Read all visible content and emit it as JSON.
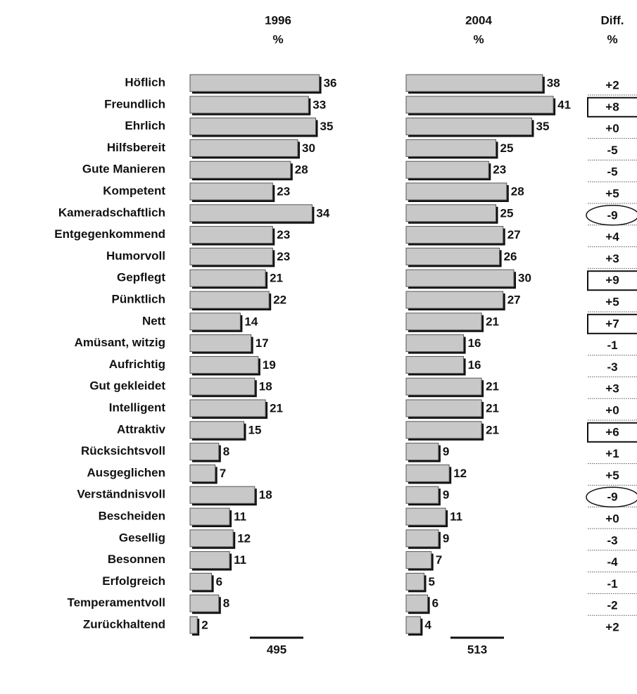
{
  "chart_data": {
    "type": "bar",
    "orientation": "horizontal",
    "categories": [
      "Höflich",
      "Freundlich",
      "Ehrlich",
      "Hilfsbereit",
      "Gute Manieren",
      "Kompetent",
      "Kameradschaftlich",
      "Entgegenkommend",
      "Humorvoll",
      "Gepflegt",
      "Pünktlich",
      "Nett",
      "Amüsant, witzig",
      "Aufrichtig",
      "Gut gekleidet",
      "Intelligent",
      "Attraktiv",
      "Rücksichtsvoll",
      "Ausgeglichen",
      "Verständnisvoll",
      "Bescheiden",
      "Gesellig",
      "Besonnen",
      "Erfolgreich",
      "Temperamentvoll",
      "Zurückhaltend"
    ],
    "series": [
      {
        "name": "1996",
        "unit": "%",
        "color": "#c8c8c8",
        "total": 495,
        "values": [
          36,
          33,
          35,
          30,
          28,
          23,
          34,
          23,
          23,
          21,
          22,
          14,
          17,
          19,
          18,
          21,
          15,
          8,
          7,
          18,
          11,
          12,
          11,
          6,
          8,
          2
        ]
      },
      {
        "name": "2004",
        "unit": "%",
        "color": "#c8c8c8",
        "total": 513,
        "values": [
          38,
          41,
          35,
          25,
          23,
          28,
          25,
          27,
          26,
          30,
          27,
          21,
          16,
          16,
          21,
          21,
          21,
          9,
          12,
          9,
          11,
          9,
          7,
          5,
          6,
          4
        ]
      }
    ],
    "diff": {
      "name": "Diff.",
      "unit": "%",
      "values": [
        2,
        8,
        0,
        -5,
        -5,
        5,
        -9,
        4,
        3,
        9,
        5,
        7,
        -1,
        -3,
        3,
        0,
        6,
        1,
        5,
        -9,
        0,
        -3,
        -4,
        -1,
        -2,
        2
      ],
      "value_labels": [
        "+2",
        "+8",
        "+0",
        "-5",
        "-5",
        "+5",
        "-9",
        "+4",
        "+3",
        "+9",
        "+5",
        "+7",
        "-1",
        "-3",
        "+3",
        "+0",
        "+6",
        "+1",
        "+5",
        "-9",
        "+0",
        "-3",
        "-4",
        "-1",
        "-2",
        "+2"
      ],
      "box": [
        1,
        9,
        11,
        16
      ],
      "circle": [
        6,
        19
      ]
    }
  }
}
